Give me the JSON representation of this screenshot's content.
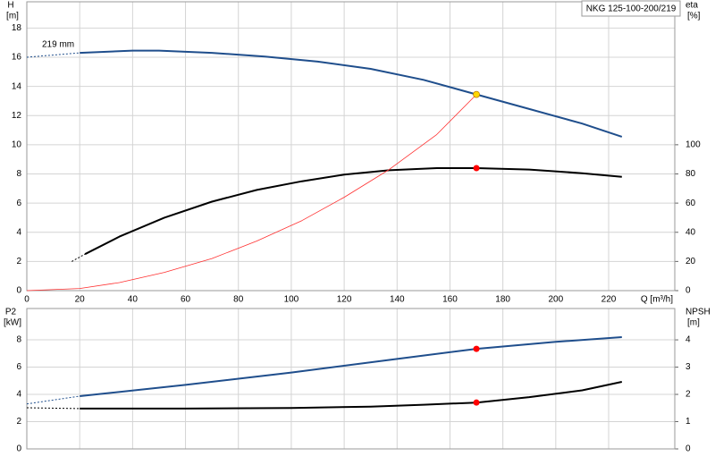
{
  "chart_data": [
    {
      "type": "line",
      "title": "NKG 125-100-200/219",
      "annotation": "219 mm",
      "y_label": "H",
      "y_unit": "[m]",
      "y2_label": "eta",
      "y2_unit": "[%]",
      "x_label": "Q [m³/h]",
      "xlim": [
        0,
        245
      ],
      "xticks": [
        0,
        20,
        40,
        60,
        80,
        100,
        120,
        140,
        160,
        180,
        200,
        220
      ],
      "ylim": [
        0,
        19.8
      ],
      "yticks": [
        0,
        2,
        4,
        6,
        8,
        10,
        12,
        14,
        16,
        18
      ],
      "y2lim": [
        0,
        198
      ],
      "y2ticks": [
        0,
        20,
        40,
        60,
        80,
        100
      ],
      "grid": true,
      "series": [
        {
          "color": "#1f4e8c",
          "dashed": true,
          "x": [
            0,
            20
          ],
          "values": [
            16.0,
            16.3
          ]
        },
        {
          "color": "#1f4e8c",
          "x": [
            20,
            40,
            50,
            70,
            90,
            110,
            130,
            150,
            170,
            190,
            210,
            225
          ],
          "values": [
            16.3,
            16.45,
            16.45,
            16.3,
            16.05,
            15.7,
            15.2,
            14.45,
            13.45,
            12.45,
            11.45,
            10.55
          ]
        },
        {
          "color": "#000000",
          "dashed": true,
          "axis": "y2",
          "x": [
            17,
            22
          ],
          "values": [
            20,
            25
          ]
        },
        {
          "color": "#000000",
          "axis": "y2",
          "x": [
            22,
            35,
            52,
            70,
            87,
            104,
            120,
            137,
            155,
            170,
            190,
            210,
            225
          ],
          "values": [
            25,
            37,
            50,
            61,
            69,
            75,
            79.5,
            82.5,
            84,
            84,
            83,
            80.5,
            78
          ]
        },
        {
          "color": "#ff3030",
          "weight": "thin",
          "x": [
            0,
            20,
            35,
            52,
            70,
            87,
            104,
            120,
            137,
            155,
            170
          ],
          "values": [
            0,
            0.15,
            0.55,
            1.25,
            2.2,
            3.4,
            4.8,
            6.4,
            8.3,
            10.7,
            13.45
          ]
        }
      ],
      "points": [
        {
          "x": 170,
          "value": 13.45,
          "color": "#ffd700"
        },
        {
          "x": 170,
          "value": 84,
          "axis": "y2",
          "color": "#ff0000"
        }
      ]
    },
    {
      "type": "line",
      "y_label": "P2",
      "y_unit": "[kW]",
      "y2_label": "NPSH",
      "y2_unit": "[m]",
      "xlim": [
        0,
        245
      ],
      "xticks": [
        0,
        20,
        40,
        60,
        80,
        100,
        120,
        140,
        160,
        180,
        200,
        220
      ],
      "ylim": [
        0,
        10.3
      ],
      "yticks": [
        0,
        2,
        4,
        6,
        8
      ],
      "y2lim": [
        0,
        5.15
      ],
      "y2ticks": [
        0,
        1,
        2,
        3,
        4
      ],
      "grid": true,
      "series": [
        {
          "color": "#1f4e8c",
          "dashed": true,
          "x": [
            0,
            20
          ],
          "values": [
            3.3,
            3.87
          ]
        },
        {
          "color": "#1f4e8c",
          "x": [
            20,
            60,
            100,
            140,
            170,
            200,
            225
          ],
          "values": [
            3.87,
            4.7,
            5.6,
            6.6,
            7.34,
            7.85,
            8.2
          ]
        },
        {
          "color": "#000000",
          "dashed": true,
          "axis": "y2",
          "x": [
            0,
            20
          ],
          "values": [
            1.51,
            1.48
          ]
        },
        {
          "color": "#000000",
          "axis": "y2",
          "x": [
            20,
            60,
            100,
            130,
            150,
            170,
            190,
            210,
            225
          ],
          "values": [
            1.48,
            1.48,
            1.5,
            1.55,
            1.62,
            1.7,
            1.9,
            2.15,
            2.46
          ]
        }
      ],
      "points": [
        {
          "x": 170,
          "value": 7.34,
          "color": "#ff0000"
        },
        {
          "x": 170,
          "value": 1.7,
          "axis": "y2",
          "color": "#ff0000"
        }
      ]
    }
  ]
}
